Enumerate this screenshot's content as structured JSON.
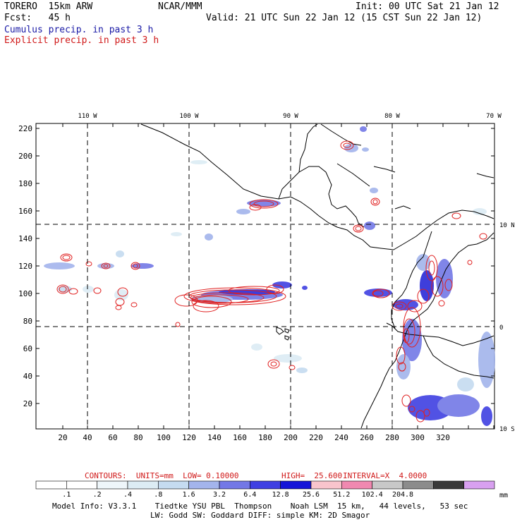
{
  "header": {
    "model": "TORERO  15km ARW",
    "center": "NCAR/MMM",
    "init": "Init: 00 UTC Sat 21 Jan 12",
    "fcst": "Fcst:   45 h",
    "valid": "Valid: 21 UTC Sun 22 Jan 12 (15 CST Sun 22 Jan 12)",
    "line_cumulus": "Cumulus precip. in past 3 h",
    "line_explicit": "Explicit precip. in past 3 h"
  },
  "colors": {
    "cumulus": "#1a1aa6",
    "explicit": "#d01818",
    "contour": "#e02020",
    "coast": "#000000"
  },
  "map": {
    "lon_labels": [
      "110 W",
      "100 W",
      "90 W",
      "80 W",
      "70 W"
    ],
    "lat_labels": [
      "10 N",
      "0",
      "10 S"
    ],
    "x_ticks": [
      "20",
      "40",
      "60",
      "80",
      "100",
      "120",
      "140",
      "160",
      "180",
      "200",
      "220",
      "240",
      "260",
      "280",
      "300",
      "320"
    ],
    "y_ticks": [
      "20",
      "40",
      "60",
      "80",
      "100",
      "120",
      "140",
      "160",
      "180",
      "200",
      "220"
    ]
  },
  "contours": {
    "label": "CONTOURS:  UNITS=mm  LOW= 0.10000",
    "high": "HIGH=  25.600",
    "interval": "INTERVAL=X  4.0000"
  },
  "colorbar": {
    "values": [
      ".1",
      ".2",
      ".4",
      ".8",
      "1.6",
      "3.2",
      "6.4",
      "12.8",
      "25.6",
      "51.2",
      "102.4",
      "204.8"
    ],
    "unit": "mm",
    "colors": [
      "#ffffff",
      "#ffffff",
      "#eef6fa",
      "#dcecf4",
      "#c5dbf0",
      "#a3b4ec",
      "#7378e6",
      "#3f40e2",
      "#1414d8",
      "#f8c4cc",
      "#f088b0",
      "#c8c8c8",
      "#8c8c8c",
      "#3a3a3a",
      "#d8a0f0"
    ]
  },
  "footer": {
    "line1": "Model Info: V3.3.1    Tiedtke YSU PBL  Thompson    Noah LSM  15 km,   44 levels,   53 sec",
    "line2": "LW: Godd SW: Goddard DIFF: simple KM: 2D Smagor"
  }
}
